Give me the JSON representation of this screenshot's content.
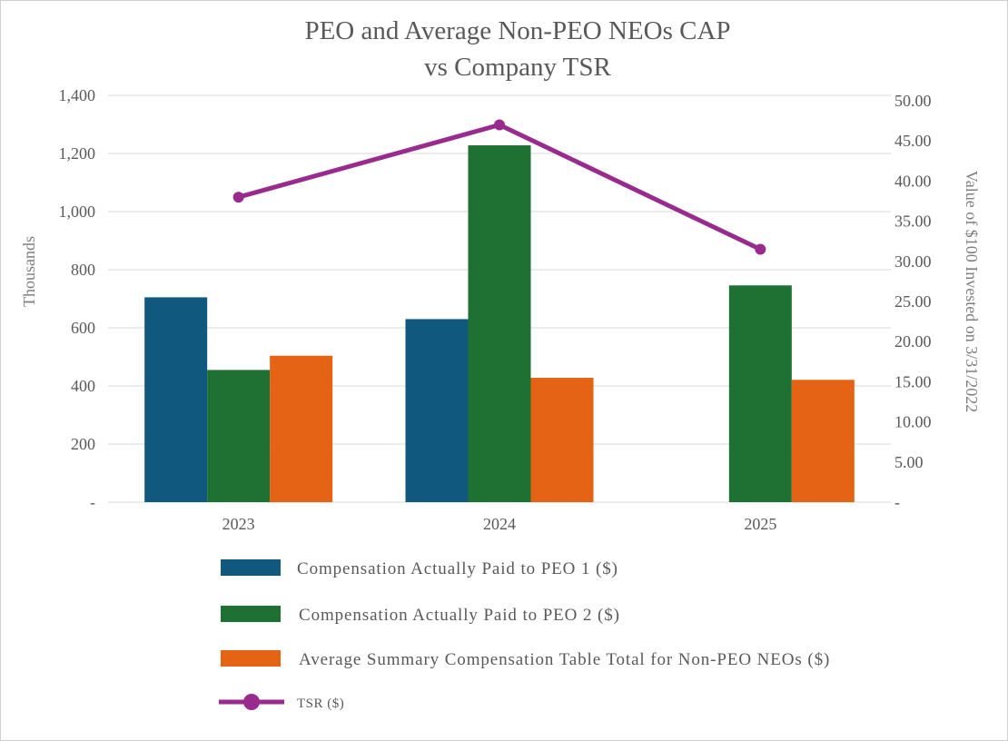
{
  "chart_data": {
    "type": "bar",
    "title": [
      "PEO and Average Non-PEO NEOs CAP",
      "vs Company TSR"
    ],
    "categories": [
      "2023",
      "2024",
      "2025"
    ],
    "series": [
      {
        "name": "Compensation Actually Paid to PEO 1 ($)",
        "type": "bar",
        "axis": "left",
        "color": "#10587e",
        "values": [
          705,
          630,
          null
        ]
      },
      {
        "name": "Compensation Actually Paid to PEO 2 ($)",
        "type": "bar",
        "axis": "left",
        "color": "#1e7133",
        "values": [
          455,
          1228,
          746
        ]
      },
      {
        "name": "Average Summary Compensation Table Total for Non-PEO NEOs ($)",
        "type": "bar",
        "axis": "left",
        "color": "#e46315",
        "values": [
          504,
          428,
          421
        ]
      },
      {
        "name": "TSR ($)",
        "type": "line",
        "axis": "right",
        "color": "#9a2b8e",
        "values": [
          38.0,
          47.0,
          31.5
        ]
      }
    ],
    "y_left": {
      "label": "Thousands",
      "min": 0,
      "max": 1400,
      "ticks": [
        0,
        200,
        400,
        600,
        800,
        1000,
        1200,
        1400
      ],
      "tick_labels": [
        "-",
        "200",
        "400",
        "600",
        "800",
        "1,000",
        "1,200",
        "1,400"
      ]
    },
    "y_right": {
      "label": "Value of $100 Invested on 3/31/2022",
      "min": 0,
      "max": 50,
      "ticks": [
        0,
        5,
        10,
        15,
        20,
        25,
        30,
        35,
        40,
        45,
        50
      ],
      "tick_labels": [
        "-",
        "5.00",
        "10.00",
        "15.00",
        "20.00",
        "25.00",
        "30.00",
        "35.00",
        "40.00",
        "45.00",
        "50.00"
      ]
    },
    "grid": true,
    "legend_position": "bottom"
  }
}
